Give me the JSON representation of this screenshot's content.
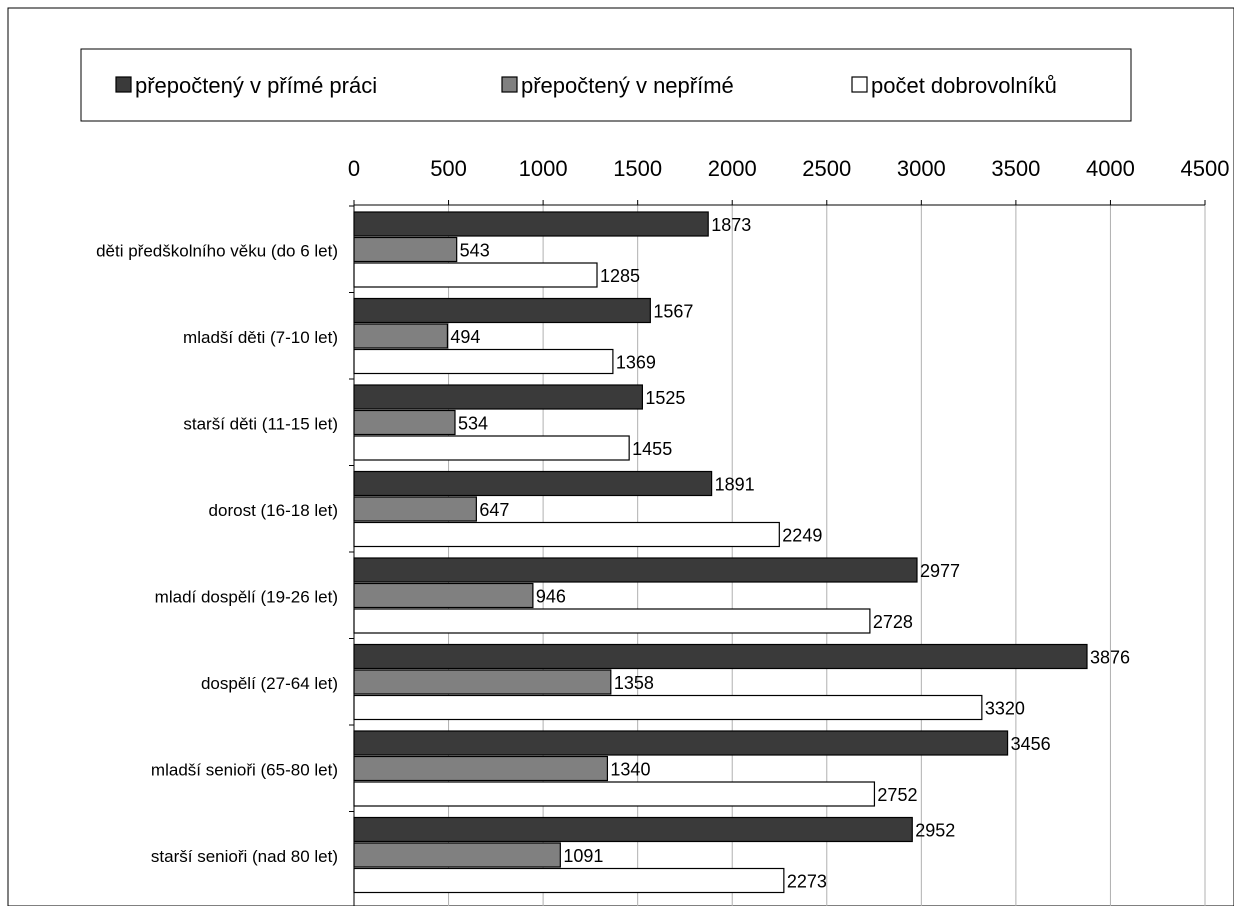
{
  "chart_data": {
    "type": "bar",
    "orientation": "horizontal",
    "categories": [
      "děti předškolního věku (do 6 let)",
      "mladší děti (7-10 let)",
      "starší děti (11-15 let)",
      "dorost (16-18 let)",
      "mladí dospělí (19-26 let)",
      "dospělí (27-64 let)",
      "mladší senioři (65-80 let)",
      "starší senioři (nad 80 let)"
    ],
    "series": [
      {
        "name": "přepočtený v přímé práci",
        "color": "#3a3a3a",
        "values": [
          1873,
          1567,
          1525,
          1891,
          2977,
          3876,
          3456,
          2952
        ]
      },
      {
        "name": "přepočtený v nepřímé",
        "color": "#808080",
        "values": [
          543,
          494,
          534,
          647,
          946,
          1358,
          1340,
          1091
        ]
      },
      {
        "name": "počet dobrovolníků",
        "color": "#ffffff",
        "values": [
          1285,
          1369,
          1455,
          2249,
          2728,
          3320,
          2752,
          2273
        ]
      }
    ],
    "xlim": [
      0,
      4500
    ],
    "ticks": [
      "0",
      "500",
      "1000",
      "1500",
      "2000",
      "2500",
      "3000",
      "3500",
      "4000",
      "4500"
    ],
    "grid": true,
    "legend_position": "top"
  }
}
